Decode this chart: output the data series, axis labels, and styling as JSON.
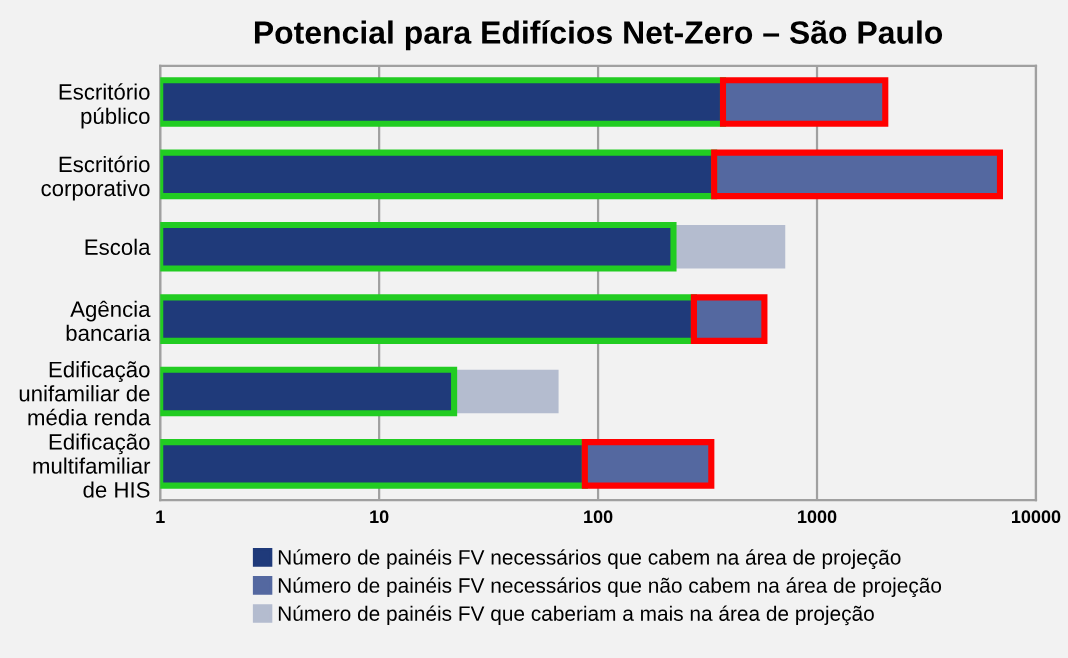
{
  "chart_data": {
    "type": "bar",
    "title": "Potencial para Edifícios Net-Zero – São Paulo",
    "orientation": "horizontal",
    "stacked": true,
    "log": "x",
    "categories": [
      "Escritório\npúblico",
      "Escritório\ncorporativo",
      "Escola",
      "Agência\nbancaria",
      "Edificação\nunifamiliar de\nmédia renda",
      "Edificação\nmultifamiliar\nde HIS"
    ],
    "series": [
      {
        "name": "Número de painéis FV necessários que cabem na área de projeção",
        "color": "#1f3a7a",
        "values": [
          372,
          339,
          221,
          274,
          22,
          87
        ]
      },
      {
        "name": "Número de painéis FV necessários que não cabem na área de projeção",
        "color": "#5468a0",
        "values": [
          1678,
          6510,
          null,
          301,
          null,
          242
        ]
      },
      {
        "name": "Número de painéis FV que caberiam a mais na área de projeção",
        "color": "#b4bccf",
        "values": [
          null,
          null,
          495,
          null,
          44,
          null
        ]
      }
    ],
    "xlim": [
      1,
      10000
    ],
    "xticks": [
      1,
      10,
      100,
      1000,
      10000
    ],
    "grid": "x",
    "legend": "bottom"
  }
}
